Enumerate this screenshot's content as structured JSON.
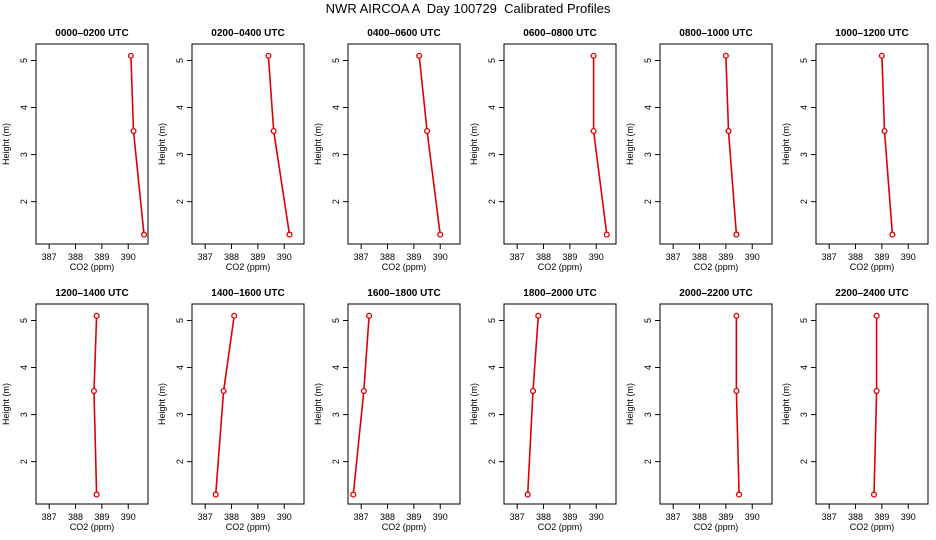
{
  "page": {
    "title": "NWR AIRCOA A  Day 100729  Calibrated Profiles"
  },
  "colors": {
    "series": "#dd0000",
    "axis": "#000000"
  },
  "chart_data": [
    {
      "type": "line",
      "title": "0000–0200 UTC",
      "xlabel": "CO2 (ppm)",
      "ylabel": "Height (m)",
      "xlim": [
        386.5,
        390.75
      ],
      "ylim": [
        1.1,
        5.35
      ],
      "xticks": [
        387,
        388,
        389,
        390
      ],
      "yticks": [
        2,
        3,
        4,
        5
      ],
      "series": [
        {
          "name": "profile",
          "points": [
            [
              390.1,
              5.1
            ],
            [
              390.2,
              3.5
            ],
            [
              390.6,
              1.3
            ]
          ]
        }
      ]
    },
    {
      "type": "line",
      "title": "0200–0400 UTC",
      "xlabel": "CO2 (ppm)",
      "ylabel": "Height (m)",
      "xlim": [
        386.5,
        390.75
      ],
      "ylim": [
        1.1,
        5.35
      ],
      "xticks": [
        387,
        388,
        389,
        390
      ],
      "yticks": [
        2,
        3,
        4,
        5
      ],
      "series": [
        {
          "name": "profile",
          "points": [
            [
              389.4,
              5.1
            ],
            [
              389.6,
              3.5
            ],
            [
              390.2,
              1.3
            ]
          ]
        }
      ]
    },
    {
      "type": "line",
      "title": "0400–0600 UTC",
      "xlabel": "CO2 (ppm)",
      "ylabel": "Height (m)",
      "xlim": [
        386.5,
        390.75
      ],
      "ylim": [
        1.1,
        5.35
      ],
      "xticks": [
        387,
        388,
        389,
        390
      ],
      "yticks": [
        2,
        3,
        4,
        5
      ],
      "series": [
        {
          "name": "profile",
          "points": [
            [
              389.2,
              5.1
            ],
            [
              389.5,
              3.5
            ],
            [
              390.0,
              1.3
            ]
          ]
        }
      ]
    },
    {
      "type": "line",
      "title": "0600–0800 UTC",
      "xlabel": "CO2 (ppm)",
      "ylabel": "Height (m)",
      "xlim": [
        386.5,
        390.75
      ],
      "ylim": [
        1.1,
        5.35
      ],
      "xticks": [
        387,
        388,
        389,
        390
      ],
      "yticks": [
        2,
        3,
        4,
        5
      ],
      "series": [
        {
          "name": "profile",
          "points": [
            [
              389.9,
              5.1
            ],
            [
              389.9,
              3.5
            ],
            [
              390.4,
              1.3
            ]
          ]
        }
      ]
    },
    {
      "type": "line",
      "title": "0800–1000 UTC",
      "xlabel": "CO2 (ppm)",
      "ylabel": "Height (m)",
      "xlim": [
        386.5,
        390.75
      ],
      "ylim": [
        1.1,
        5.35
      ],
      "xticks": [
        387,
        388,
        389,
        390
      ],
      "yticks": [
        2,
        3,
        4,
        5
      ],
      "series": [
        {
          "name": "profile",
          "points": [
            [
              389.0,
              5.1
            ],
            [
              389.1,
              3.5
            ],
            [
              389.4,
              1.3
            ]
          ]
        }
      ]
    },
    {
      "type": "line",
      "title": "1000–1200 UTC",
      "xlabel": "CO2 (ppm)",
      "ylabel": "Height (m)",
      "xlim": [
        386.5,
        390.75
      ],
      "ylim": [
        1.1,
        5.35
      ],
      "xticks": [
        387,
        388,
        389,
        390
      ],
      "yticks": [
        2,
        3,
        4,
        5
      ],
      "series": [
        {
          "name": "profile",
          "points": [
            [
              389.0,
              5.1
            ],
            [
              389.1,
              3.5
            ],
            [
              389.4,
              1.3
            ]
          ]
        }
      ]
    },
    {
      "type": "line",
      "title": "1200–1400 UTC",
      "xlabel": "CO2 (ppm)",
      "ylabel": "Height (m)",
      "xlim": [
        386.5,
        390.75
      ],
      "ylim": [
        1.1,
        5.35
      ],
      "xticks": [
        387,
        388,
        389,
        390
      ],
      "yticks": [
        2,
        3,
        4,
        5
      ],
      "series": [
        {
          "name": "profile",
          "points": [
            [
              388.8,
              5.1
            ],
            [
              388.7,
              3.5
            ],
            [
              388.8,
              1.3
            ]
          ]
        }
      ]
    },
    {
      "type": "line",
      "title": "1400–1600 UTC",
      "xlabel": "CO2 (ppm)",
      "ylabel": "Height (m)",
      "xlim": [
        386.5,
        390.75
      ],
      "ylim": [
        1.1,
        5.35
      ],
      "xticks": [
        387,
        388,
        389,
        390
      ],
      "yticks": [
        2,
        3,
        4,
        5
      ],
      "series": [
        {
          "name": "profile",
          "points": [
            [
              388.1,
              5.1
            ],
            [
              387.7,
              3.5
            ],
            [
              387.4,
              1.3
            ]
          ]
        }
      ]
    },
    {
      "type": "line",
      "title": "1600–1800 UTC",
      "xlabel": "CO2 (ppm)",
      "ylabel": "Height (m)",
      "xlim": [
        386.5,
        390.75
      ],
      "ylim": [
        1.1,
        5.35
      ],
      "xticks": [
        387,
        388,
        389,
        390
      ],
      "yticks": [
        2,
        3,
        4,
        5
      ],
      "series": [
        {
          "name": "profile",
          "points": [
            [
              387.3,
              5.1
            ],
            [
              387.1,
              3.5
            ],
            [
              386.7,
              1.3
            ]
          ]
        }
      ]
    },
    {
      "type": "line",
      "title": "1800–2000 UTC",
      "xlabel": "CO2 (ppm)",
      "ylabel": "Height (m)",
      "xlim": [
        386.5,
        390.75
      ],
      "ylim": [
        1.1,
        5.35
      ],
      "xticks": [
        387,
        388,
        389,
        390
      ],
      "yticks": [
        2,
        3,
        4,
        5
      ],
      "series": [
        {
          "name": "profile",
          "points": [
            [
              387.8,
              5.1
            ],
            [
              387.6,
              3.5
            ],
            [
              387.4,
              1.3
            ]
          ]
        }
      ]
    },
    {
      "type": "line",
      "title": "2000–2200 UTC",
      "xlabel": "CO2 (ppm)",
      "ylabel": "Height (m)",
      "xlim": [
        386.5,
        390.75
      ],
      "ylim": [
        1.1,
        5.35
      ],
      "xticks": [
        387,
        388,
        389,
        390
      ],
      "yticks": [
        2,
        3,
        4,
        5
      ],
      "series": [
        {
          "name": "profile",
          "points": [
            [
              389.4,
              5.1
            ],
            [
              389.4,
              3.5
            ],
            [
              389.5,
              1.3
            ]
          ]
        }
      ]
    },
    {
      "type": "line",
      "title": "2200–2400 UTC",
      "xlabel": "CO2 (ppm)",
      "ylabel": "Height (m)",
      "xlim": [
        386.5,
        390.75
      ],
      "ylim": [
        1.1,
        5.35
      ],
      "xticks": [
        387,
        388,
        389,
        390
      ],
      "yticks": [
        2,
        3,
        4,
        5
      ],
      "series": [
        {
          "name": "profile",
          "points": [
            [
              388.8,
              5.1
            ],
            [
              388.8,
              3.5
            ],
            [
              388.7,
              1.3
            ]
          ]
        }
      ]
    }
  ]
}
